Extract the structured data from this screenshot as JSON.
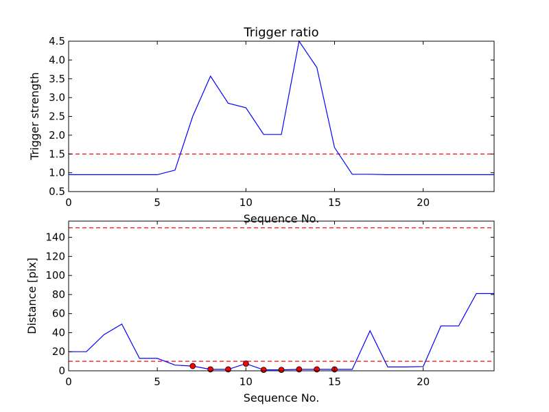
{
  "chart_data": [
    {
      "type": "line",
      "title": "Trigger ratio",
      "xlabel": "Sequence No.",
      "ylabel": "Trigger strength",
      "xlim": [
        0,
        24
      ],
      "ylim": [
        0.5,
        4.5
      ],
      "xticks": [
        0,
        5,
        10,
        15,
        20
      ],
      "yticks": [
        0.5,
        1.0,
        1.5,
        2.0,
        2.5,
        3.0,
        3.5,
        4.0,
        4.5
      ],
      "ytick_decimals": 1,
      "grid": false,
      "series": [
        {
          "color": "#0000ff",
          "x": [
            0,
            1,
            2,
            3,
            4,
            5,
            6,
            7,
            8,
            9,
            10,
            11,
            12,
            13,
            14,
            15,
            16,
            17,
            18,
            19,
            20,
            21,
            22,
            23,
            24
          ],
          "y": [
            0.95,
            0.95,
            0.95,
            0.95,
            0.95,
            0.95,
            1.07,
            2.5,
            3.57,
            2.85,
            2.73,
            2.02,
            2.02,
            4.5,
            3.8,
            1.67,
            0.96,
            0.96,
            0.95,
            0.95,
            0.95,
            0.95,
            0.95,
            0.95,
            0.95
          ]
        }
      ],
      "hlines": [
        {
          "y": 1.5,
          "color": "#ff0000",
          "style": "dashed"
        }
      ]
    },
    {
      "type": "line",
      "title": "",
      "xlabel": "Sequence No.",
      "ylabel": "Distance [pix]",
      "xlim": [
        0,
        24
      ],
      "ylim": [
        0,
        157
      ],
      "xticks": [
        0,
        5,
        10,
        15,
        20
      ],
      "yticks": [
        0,
        20,
        40,
        60,
        80,
        100,
        120,
        140
      ],
      "ytick_decimals": 0,
      "grid": false,
      "series": [
        {
          "color": "#0000ff",
          "x": [
            0,
            1,
            2,
            3,
            4,
            5,
            6,
            7,
            8,
            9,
            10,
            11,
            12,
            13,
            14,
            15,
            16,
            17,
            18,
            19,
            20,
            21,
            22,
            23,
            24
          ],
          "y": [
            20,
            20,
            38,
            49,
            13,
            13,
            6,
            5,
            1.5,
            1.5,
            7.5,
            1,
            1,
            1.5,
            1.5,
            1.5,
            1.5,
            42,
            4,
            4,
            4.5,
            47,
            47,
            81,
            81
          ]
        }
      ],
      "markers": {
        "color": "#ff0000",
        "x": [
          7,
          8,
          9,
          10,
          11,
          12,
          13,
          14,
          15
        ],
        "y": [
          5,
          1.5,
          1.5,
          7.5,
          1,
          1,
          1.5,
          1.5,
          1.5
        ]
      },
      "hlines": [
        {
          "y": 150,
          "color": "#ff0000",
          "style": "dashed"
        },
        {
          "y": 10,
          "color": "#ff0000",
          "style": "dashed"
        }
      ]
    }
  ]
}
